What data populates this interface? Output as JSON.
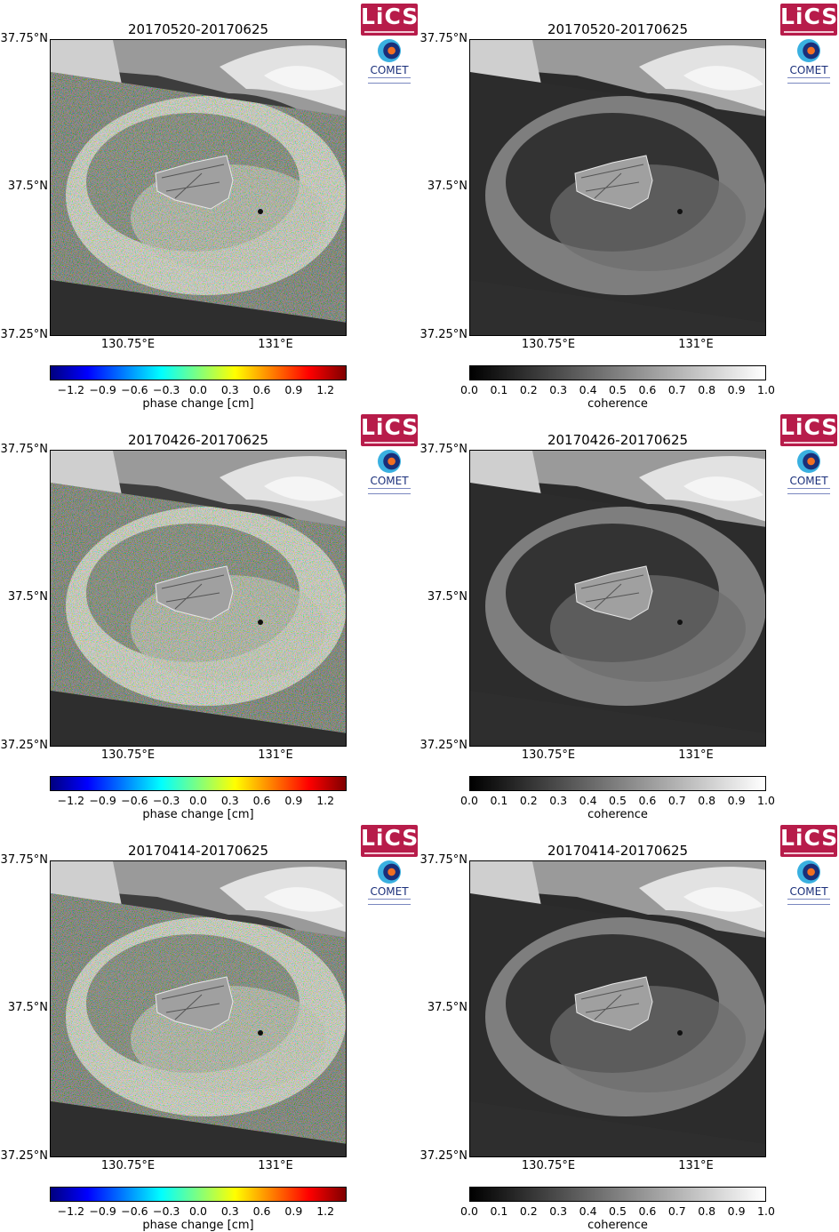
{
  "panels": [
    {
      "title": "20170520-20170625",
      "kind": "phase"
    },
    {
      "title": "20170520-20170625",
      "kind": "coherence"
    },
    {
      "title": "20170426-20170625",
      "kind": "phase"
    },
    {
      "title": "20170426-20170625",
      "kind": "coherence"
    },
    {
      "title": "20170414-20170625",
      "kind": "phase"
    },
    {
      "title": "20170414-20170625",
      "kind": "coherence"
    }
  ],
  "axes": {
    "y_ticks": [
      "37.75°N",
      "37.5°N",
      "37.25°N"
    ],
    "x_ticks": [
      "130.75°E",
      "131°E"
    ]
  },
  "phase_colorbar": {
    "ticks": [
      "−1.2",
      "−0.9",
      "−0.6",
      "−0.3",
      "0.0",
      "0.3",
      "0.6",
      "0.9",
      "1.2"
    ],
    "label": "phase change [cm]",
    "range": [
      -1.4,
      1.4
    ],
    "colormap": [
      "#00007f",
      "#0000ff",
      "#007fff",
      "#00ffff",
      "#7fff7f",
      "#ffff00",
      "#ff7f00",
      "#ff0000",
      "#7f0000"
    ]
  },
  "coherence_colorbar": {
    "ticks": [
      "0.0",
      "0.1",
      "0.2",
      "0.3",
      "0.4",
      "0.5",
      "0.6",
      "0.7",
      "0.8",
      "0.9",
      "1.0"
    ],
    "label": "coherence",
    "range": [
      0.0,
      1.0
    ],
    "colormap": [
      "#000000",
      "#ffffff"
    ]
  },
  "logos": {
    "lics": "LiCS",
    "comet": "COMET"
  }
}
